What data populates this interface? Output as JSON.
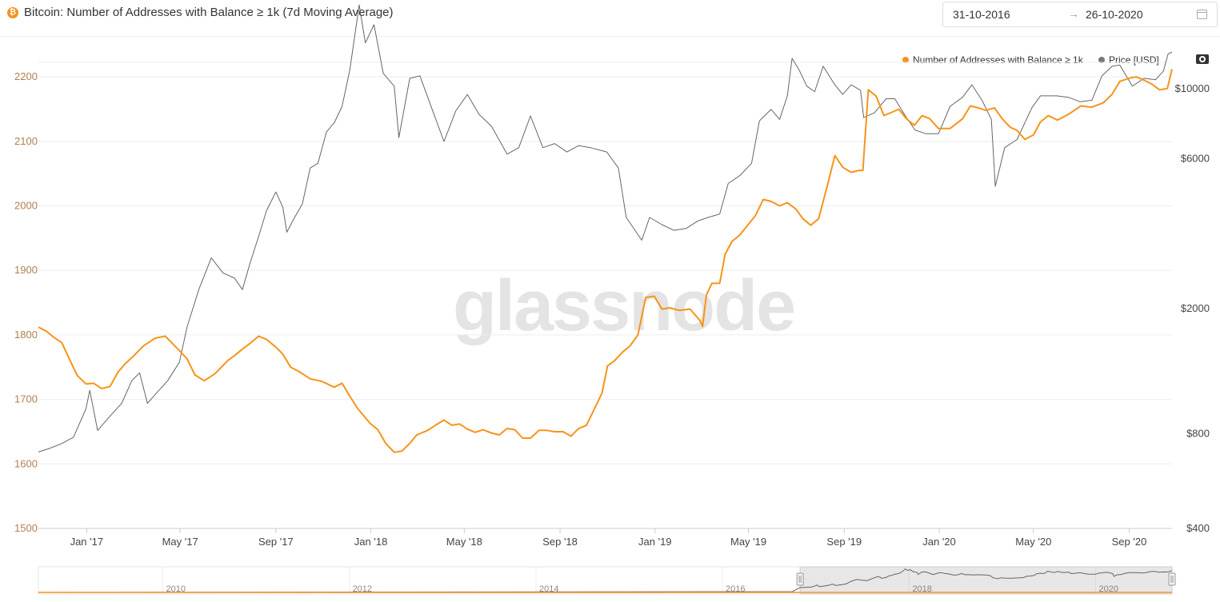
{
  "header": {
    "coin_icon_letter": "₿",
    "title": "Bitcoin: Number of Addresses with Balance ≥ 1k (7d Moving Average)",
    "date_from": "31-10-2016",
    "date_arrow": "→",
    "date_to": "26-10-2020"
  },
  "watermark": "glassnode",
  "colors": {
    "addresses": "#f7931a",
    "price": "#666666",
    "left_axis": "#b08050",
    "grid": "#eeeeee"
  },
  "chart_data": {
    "type": "line",
    "title": "Bitcoin: Number of Addresses with Balance ≥ 1k (7d Moving Average)",
    "legend": [
      "Number of Addresses with Balance ≥ 1k",
      "Price [USD]"
    ],
    "legend_position": "top-right",
    "x_tick_labels": [
      "Jan '17",
      "May '17",
      "Sep '17",
      "Jan '18",
      "May '18",
      "Sep '18",
      "Jan '19",
      "May '19",
      "Sep '19",
      "Jan '20",
      "May '20",
      "Sep '20"
    ],
    "x_tick_dates": [
      "2017-01-01",
      "2017-05-01",
      "2017-09-01",
      "2018-01-01",
      "2018-05-01",
      "2018-09-01",
      "2019-01-01",
      "2019-05-01",
      "2019-09-01",
      "2020-01-01",
      "2020-05-01",
      "2020-09-01"
    ],
    "xlim": [
      "2016-10-31",
      "2020-10-26"
    ],
    "y_left": {
      "ticks": [
        1500,
        1600,
        1700,
        1800,
        1900,
        2000,
        2100,
        2200
      ],
      "range": [
        1500,
        2220
      ]
    },
    "y_right": {
      "scale": "log",
      "ticks": [
        400,
        800,
        2000,
        6000,
        10000
      ],
      "tick_labels": [
        "$400",
        "$800",
        "$2000",
        "$6000",
        "$10000"
      ],
      "range": [
        400,
        12000
      ]
    },
    "grid": true,
    "series": [
      {
        "name": "Number of Addresses with Balance ≥ 1k",
        "axis": "left",
        "points": [
          [
            "2016-10-31",
            1812
          ],
          [
            "2016-11-10",
            1806
          ],
          [
            "2016-11-20",
            1796
          ],
          [
            "2016-11-30",
            1788
          ],
          [
            "2016-12-10",
            1762
          ],
          [
            "2016-12-20",
            1737
          ],
          [
            "2016-12-31",
            1724
          ],
          [
            "2017-01-10",
            1725
          ],
          [
            "2017-01-20",
            1717
          ],
          [
            "2017-01-31",
            1720
          ],
          [
            "2017-02-10",
            1742
          ],
          [
            "2017-02-20",
            1756
          ],
          [
            "2017-03-01",
            1766
          ],
          [
            "2017-03-15",
            1783
          ],
          [
            "2017-03-30",
            1795
          ],
          [
            "2017-04-12",
            1798
          ],
          [
            "2017-04-25",
            1782
          ],
          [
            "2017-05-10",
            1763
          ],
          [
            "2017-05-20",
            1738
          ],
          [
            "2017-06-01",
            1729
          ],
          [
            "2017-06-15",
            1740
          ],
          [
            "2017-07-01",
            1760
          ],
          [
            "2017-07-10",
            1768
          ],
          [
            "2017-07-20",
            1778
          ],
          [
            "2017-07-30",
            1787
          ],
          [
            "2017-08-10",
            1798
          ],
          [
            "2017-08-20",
            1793
          ],
          [
            "2017-09-01",
            1781
          ],
          [
            "2017-09-10",
            1770
          ],
          [
            "2017-09-20",
            1750
          ],
          [
            "2017-10-01",
            1743
          ],
          [
            "2017-10-15",
            1732
          ],
          [
            "2017-10-30",
            1728
          ],
          [
            "2017-11-15",
            1719
          ],
          [
            "2017-11-25",
            1725
          ],
          [
            "2017-12-05",
            1705
          ],
          [
            "2017-12-15",
            1686
          ],
          [
            "2017-12-31",
            1663
          ],
          [
            "2018-01-10",
            1653
          ],
          [
            "2018-01-20",
            1632
          ],
          [
            "2018-01-31",
            1618
          ],
          [
            "2018-02-10",
            1620
          ],
          [
            "2018-02-20",
            1632
          ],
          [
            "2018-03-01",
            1645
          ],
          [
            "2018-03-15",
            1652
          ],
          [
            "2018-03-25",
            1660
          ],
          [
            "2018-04-05",
            1668
          ],
          [
            "2018-04-15",
            1660
          ],
          [
            "2018-04-25",
            1662
          ],
          [
            "2018-05-05",
            1654
          ],
          [
            "2018-05-15",
            1649
          ],
          [
            "2018-05-25",
            1653
          ],
          [
            "2018-06-05",
            1648
          ],
          [
            "2018-06-15",
            1645
          ],
          [
            "2018-06-25",
            1655
          ],
          [
            "2018-07-05",
            1653
          ],
          [
            "2018-07-15",
            1640
          ],
          [
            "2018-07-25",
            1640
          ],
          [
            "2018-08-05",
            1652
          ],
          [
            "2018-08-15",
            1652
          ],
          [
            "2018-08-25",
            1650
          ],
          [
            "2018-09-05",
            1650
          ],
          [
            "2018-09-15",
            1643
          ],
          [
            "2018-09-25",
            1655
          ],
          [
            "2018-10-05",
            1660
          ],
          [
            "2018-10-15",
            1685
          ],
          [
            "2018-10-25",
            1710
          ],
          [
            "2018-11-01",
            1752
          ],
          [
            "2018-11-10",
            1760
          ],
          [
            "2018-11-20",
            1773
          ],
          [
            "2018-11-30",
            1783
          ],
          [
            "2018-12-10",
            1800
          ],
          [
            "2018-12-20",
            1858
          ],
          [
            "2018-12-31",
            1860
          ],
          [
            "2019-01-10",
            1840
          ],
          [
            "2019-01-20",
            1842
          ],
          [
            "2019-02-01",
            1838
          ],
          [
            "2019-02-15",
            1840
          ],
          [
            "2019-02-28",
            1822
          ],
          [
            "2019-03-03",
            1813
          ],
          [
            "2019-03-08",
            1862
          ],
          [
            "2019-03-15",
            1880
          ],
          [
            "2019-03-25",
            1880
          ],
          [
            "2019-04-01",
            1925
          ],
          [
            "2019-04-10",
            1945
          ],
          [
            "2019-04-20",
            1955
          ],
          [
            "2019-04-30",
            1970
          ],
          [
            "2019-05-10",
            1985
          ],
          [
            "2019-05-20",
            2010
          ],
          [
            "2019-05-30",
            2007
          ],
          [
            "2019-06-10",
            2000
          ],
          [
            "2019-06-20",
            2005
          ],
          [
            "2019-07-01",
            1995
          ],
          [
            "2019-07-10",
            1980
          ],
          [
            "2019-07-20",
            1970
          ],
          [
            "2019-07-30",
            1980
          ],
          [
            "2019-08-10",
            2030
          ],
          [
            "2019-08-20",
            2078
          ],
          [
            "2019-08-30",
            2060
          ],
          [
            "2019-09-10",
            2052
          ],
          [
            "2019-09-20",
            2055
          ],
          [
            "2019-09-25",
            2055
          ],
          [
            "2019-10-02",
            2180
          ],
          [
            "2019-10-12",
            2170
          ],
          [
            "2019-10-22",
            2140
          ],
          [
            "2019-11-01",
            2145
          ],
          [
            "2019-11-10",
            2150
          ],
          [
            "2019-11-20",
            2135
          ],
          [
            "2019-11-30",
            2125
          ],
          [
            "2019-12-10",
            2140
          ],
          [
            "2019-12-20",
            2135
          ],
          [
            "2019-12-31",
            2120
          ],
          [
            "2020-01-15",
            2120
          ],
          [
            "2020-01-31",
            2135
          ],
          [
            "2020-02-10",
            2155
          ],
          [
            "2020-02-20",
            2152
          ],
          [
            "2020-03-01",
            2148
          ],
          [
            "2020-03-12",
            2152
          ],
          [
            "2020-03-22",
            2135
          ],
          [
            "2020-04-01",
            2122
          ],
          [
            "2020-04-10",
            2117
          ],
          [
            "2020-04-20",
            2103
          ],
          [
            "2020-05-01",
            2110
          ],
          [
            "2020-05-10",
            2130
          ],
          [
            "2020-05-20",
            2140
          ],
          [
            "2020-06-01",
            2133
          ],
          [
            "2020-06-15",
            2142
          ],
          [
            "2020-07-01",
            2155
          ],
          [
            "2020-07-15",
            2153
          ],
          [
            "2020-07-30",
            2160
          ],
          [
            "2020-08-10",
            2173
          ],
          [
            "2020-08-20",
            2193
          ],
          [
            "2020-09-01",
            2198
          ],
          [
            "2020-09-10",
            2200
          ],
          [
            "2020-09-20",
            2195
          ],
          [
            "2020-10-01",
            2188
          ],
          [
            "2020-10-10",
            2180
          ],
          [
            "2020-10-20",
            2182
          ],
          [
            "2020-10-26",
            2212
          ]
        ]
      },
      {
        "name": "Price [USD]",
        "axis": "right",
        "points": [
          [
            "2016-10-31",
            700
          ],
          [
            "2016-11-15",
            720
          ],
          [
            "2016-11-30",
            745
          ],
          [
            "2016-12-15",
            780
          ],
          [
            "2016-12-31",
            960
          ],
          [
            "2017-01-05",
            1100
          ],
          [
            "2017-01-15",
            820
          ],
          [
            "2017-01-31",
            910
          ],
          [
            "2017-02-15",
            1000
          ],
          [
            "2017-02-28",
            1180
          ],
          [
            "2017-03-10",
            1250
          ],
          [
            "2017-03-20",
            1000
          ],
          [
            "2017-04-01",
            1080
          ],
          [
            "2017-04-15",
            1180
          ],
          [
            "2017-04-30",
            1350
          ],
          [
            "2017-05-10",
            1750
          ],
          [
            "2017-05-25",
            2300
          ],
          [
            "2017-06-10",
            2900
          ],
          [
            "2017-06-25",
            2600
          ],
          [
            "2017-07-10",
            2500
          ],
          [
            "2017-07-20",
            2300
          ],
          [
            "2017-07-30",
            2800
          ],
          [
            "2017-08-10",
            3400
          ],
          [
            "2017-08-20",
            4100
          ],
          [
            "2017-09-01",
            4700
          ],
          [
            "2017-09-10",
            4200
          ],
          [
            "2017-09-15",
            3500
          ],
          [
            "2017-09-25",
            3900
          ],
          [
            "2017-10-05",
            4300
          ],
          [
            "2017-10-15",
            5600
          ],
          [
            "2017-10-25",
            5800
          ],
          [
            "2017-11-05",
            7300
          ],
          [
            "2017-11-15",
            7800
          ],
          [
            "2017-11-25",
            8800
          ],
          [
            "2017-12-05",
            11500
          ],
          [
            "2017-12-17",
            18500
          ],
          [
            "2017-12-25",
            14000
          ],
          [
            "2018-01-05",
            16000
          ],
          [
            "2018-01-17",
            11200
          ],
          [
            "2018-01-31",
            10200
          ],
          [
            "2018-02-06",
            7000
          ],
          [
            "2018-02-20",
            10800
          ],
          [
            "2018-03-05",
            11000
          ],
          [
            "2018-03-20",
            8700
          ],
          [
            "2018-04-05",
            6800
          ],
          [
            "2018-04-20",
            8500
          ],
          [
            "2018-05-05",
            9600
          ],
          [
            "2018-05-20",
            8300
          ],
          [
            "2018-06-05",
            7600
          ],
          [
            "2018-06-25",
            6200
          ],
          [
            "2018-07-10",
            6500
          ],
          [
            "2018-07-25",
            8200
          ],
          [
            "2018-08-10",
            6500
          ],
          [
            "2018-08-25",
            6700
          ],
          [
            "2018-09-10",
            6300
          ],
          [
            "2018-09-25",
            6600
          ],
          [
            "2018-10-10",
            6500
          ],
          [
            "2018-10-31",
            6300
          ],
          [
            "2018-11-15",
            5600
          ],
          [
            "2018-11-25",
            3900
          ],
          [
            "2018-12-15",
            3300
          ],
          [
            "2018-12-25",
            3900
          ],
          [
            "2019-01-10",
            3700
          ],
          [
            "2019-01-25",
            3550
          ],
          [
            "2019-02-10",
            3600
          ],
          [
            "2019-02-25",
            3800
          ],
          [
            "2019-03-10",
            3900
          ],
          [
            "2019-03-25",
            4000
          ],
          [
            "2019-04-05",
            5000
          ],
          [
            "2019-04-20",
            5300
          ],
          [
            "2019-05-05",
            5800
          ],
          [
            "2019-05-15",
            7900
          ],
          [
            "2019-05-30",
            8600
          ],
          [
            "2019-06-10",
            8000
          ],
          [
            "2019-06-20",
            9500
          ],
          [
            "2019-06-26",
            12500
          ],
          [
            "2019-07-05",
            11500
          ],
          [
            "2019-07-15",
            10200
          ],
          [
            "2019-07-25",
            9800
          ],
          [
            "2019-08-05",
            11800
          ],
          [
            "2019-08-20",
            10300
          ],
          [
            "2019-08-30",
            9600
          ],
          [
            "2019-09-10",
            10300
          ],
          [
            "2019-09-22",
            9900
          ],
          [
            "2019-09-26",
            8100
          ],
          [
            "2019-10-10",
            8400
          ],
          [
            "2019-10-25",
            9300
          ],
          [
            "2019-11-05",
            9300
          ],
          [
            "2019-11-20",
            8100
          ],
          [
            "2019-12-01",
            7400
          ],
          [
            "2019-12-15",
            7200
          ],
          [
            "2019-12-31",
            7200
          ],
          [
            "2020-01-15",
            8800
          ],
          [
            "2020-01-31",
            9400
          ],
          [
            "2020-02-12",
            10300
          ],
          [
            "2020-02-25",
            9200
          ],
          [
            "2020-03-08",
            8000
          ],
          [
            "2020-03-13",
            4900
          ],
          [
            "2020-03-25",
            6500
          ],
          [
            "2020-04-10",
            6900
          ],
          [
            "2020-04-29",
            8700
          ],
          [
            "2020-05-10",
            9500
          ],
          [
            "2020-05-31",
            9500
          ],
          [
            "2020-06-15",
            9400
          ],
          [
            "2020-06-30",
            9100
          ],
          [
            "2020-07-15",
            9200
          ],
          [
            "2020-07-28",
            11000
          ],
          [
            "2020-08-10",
            11800
          ],
          [
            "2020-08-20",
            11900
          ],
          [
            "2020-09-05",
            10200
          ],
          [
            "2020-09-20",
            10800
          ],
          [
            "2020-10-05",
            10700
          ],
          [
            "2020-10-15",
            11400
          ],
          [
            "2020-10-21",
            12900
          ],
          [
            "2020-10-26",
            13100
          ]
        ]
      }
    ],
    "navigator": {
      "x_tick_labels": [
        "2010",
        "2012",
        "2014",
        "2016",
        "2018",
        "2020"
      ],
      "x_tick_dates": [
        "2010-01-01",
        "2012-01-01",
        "2014-01-01",
        "2016-01-01",
        "2018-01-01",
        "2020-01-01"
      ],
      "xlim": [
        "2008-09-01",
        "2020-10-26"
      ],
      "selection": [
        "2016-10-31",
        "2020-10-26"
      ]
    }
  }
}
